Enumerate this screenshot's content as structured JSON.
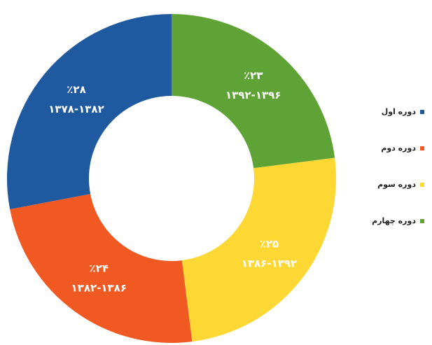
{
  "chart_data": {
    "type": "donut",
    "categories": [
      "دوره اول",
      "دوره دوم",
      "دوره سوم",
      "دوره چهارم"
    ],
    "values": [
      28,
      24,
      25,
      23
    ],
    "value_labels": [
      "٪۲۸",
      "٪۲۴",
      "٪۲۵",
      "٪۲۳"
    ],
    "ranges": [
      "۱۳۷۸-۱۳۸۲",
      "۱۳۸۲-۱۳۸۶",
      "۱۳۸۶-۱۳۹۲",
      "۱۳۹۲-۱۳۹۶"
    ],
    "colors": [
      "#1f5aa0",
      "#f05a22",
      "#fdd835",
      "#5fa336"
    ],
    "legend": "right"
  }
}
